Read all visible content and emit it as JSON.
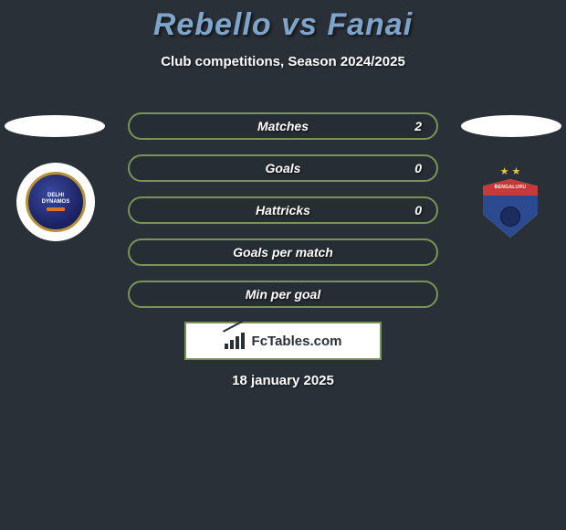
{
  "header": {
    "title": "Rebello vs Fanai",
    "title_color": "#7ea4c9",
    "title_fontsize": 34,
    "subtitle": "Club competitions, Season 2024/2025",
    "subtitle_color": "#ffffff"
  },
  "background_color": "#2a3038",
  "pill_border_color": "#7a9458",
  "stats": [
    {
      "label": "Matches",
      "value_right": "2"
    },
    {
      "label": "Goals",
      "value_right": "0"
    },
    {
      "label": "Hattricks",
      "value_right": "0"
    },
    {
      "label": "Goals per match",
      "value_right": ""
    },
    {
      "label": "Min per goal",
      "value_right": ""
    }
  ],
  "left_team": {
    "badge_outer_color": "#ffffff",
    "badge_inner_gradient_from": "#3a4a9e",
    "badge_inner_gradient_to": "#1a2060",
    "badge_border_color": "#b8923a",
    "text_line1": "DELHI",
    "text_line2": "DYNAMOS",
    "accent_bar_color": "#d97720"
  },
  "right_team": {
    "stars": "★ ★",
    "stars_color": "#e8c547",
    "shield_top_color": "#c73838",
    "shield_top_text": "BENGALURU",
    "shield_bottom_color": "#2b4a8f",
    "ball_color": "#1a2d5e"
  },
  "footer": {
    "brand": "FcTables.com",
    "box_bg": "#ffffff",
    "box_border": "#7a9458",
    "date": "18 january 2025"
  }
}
